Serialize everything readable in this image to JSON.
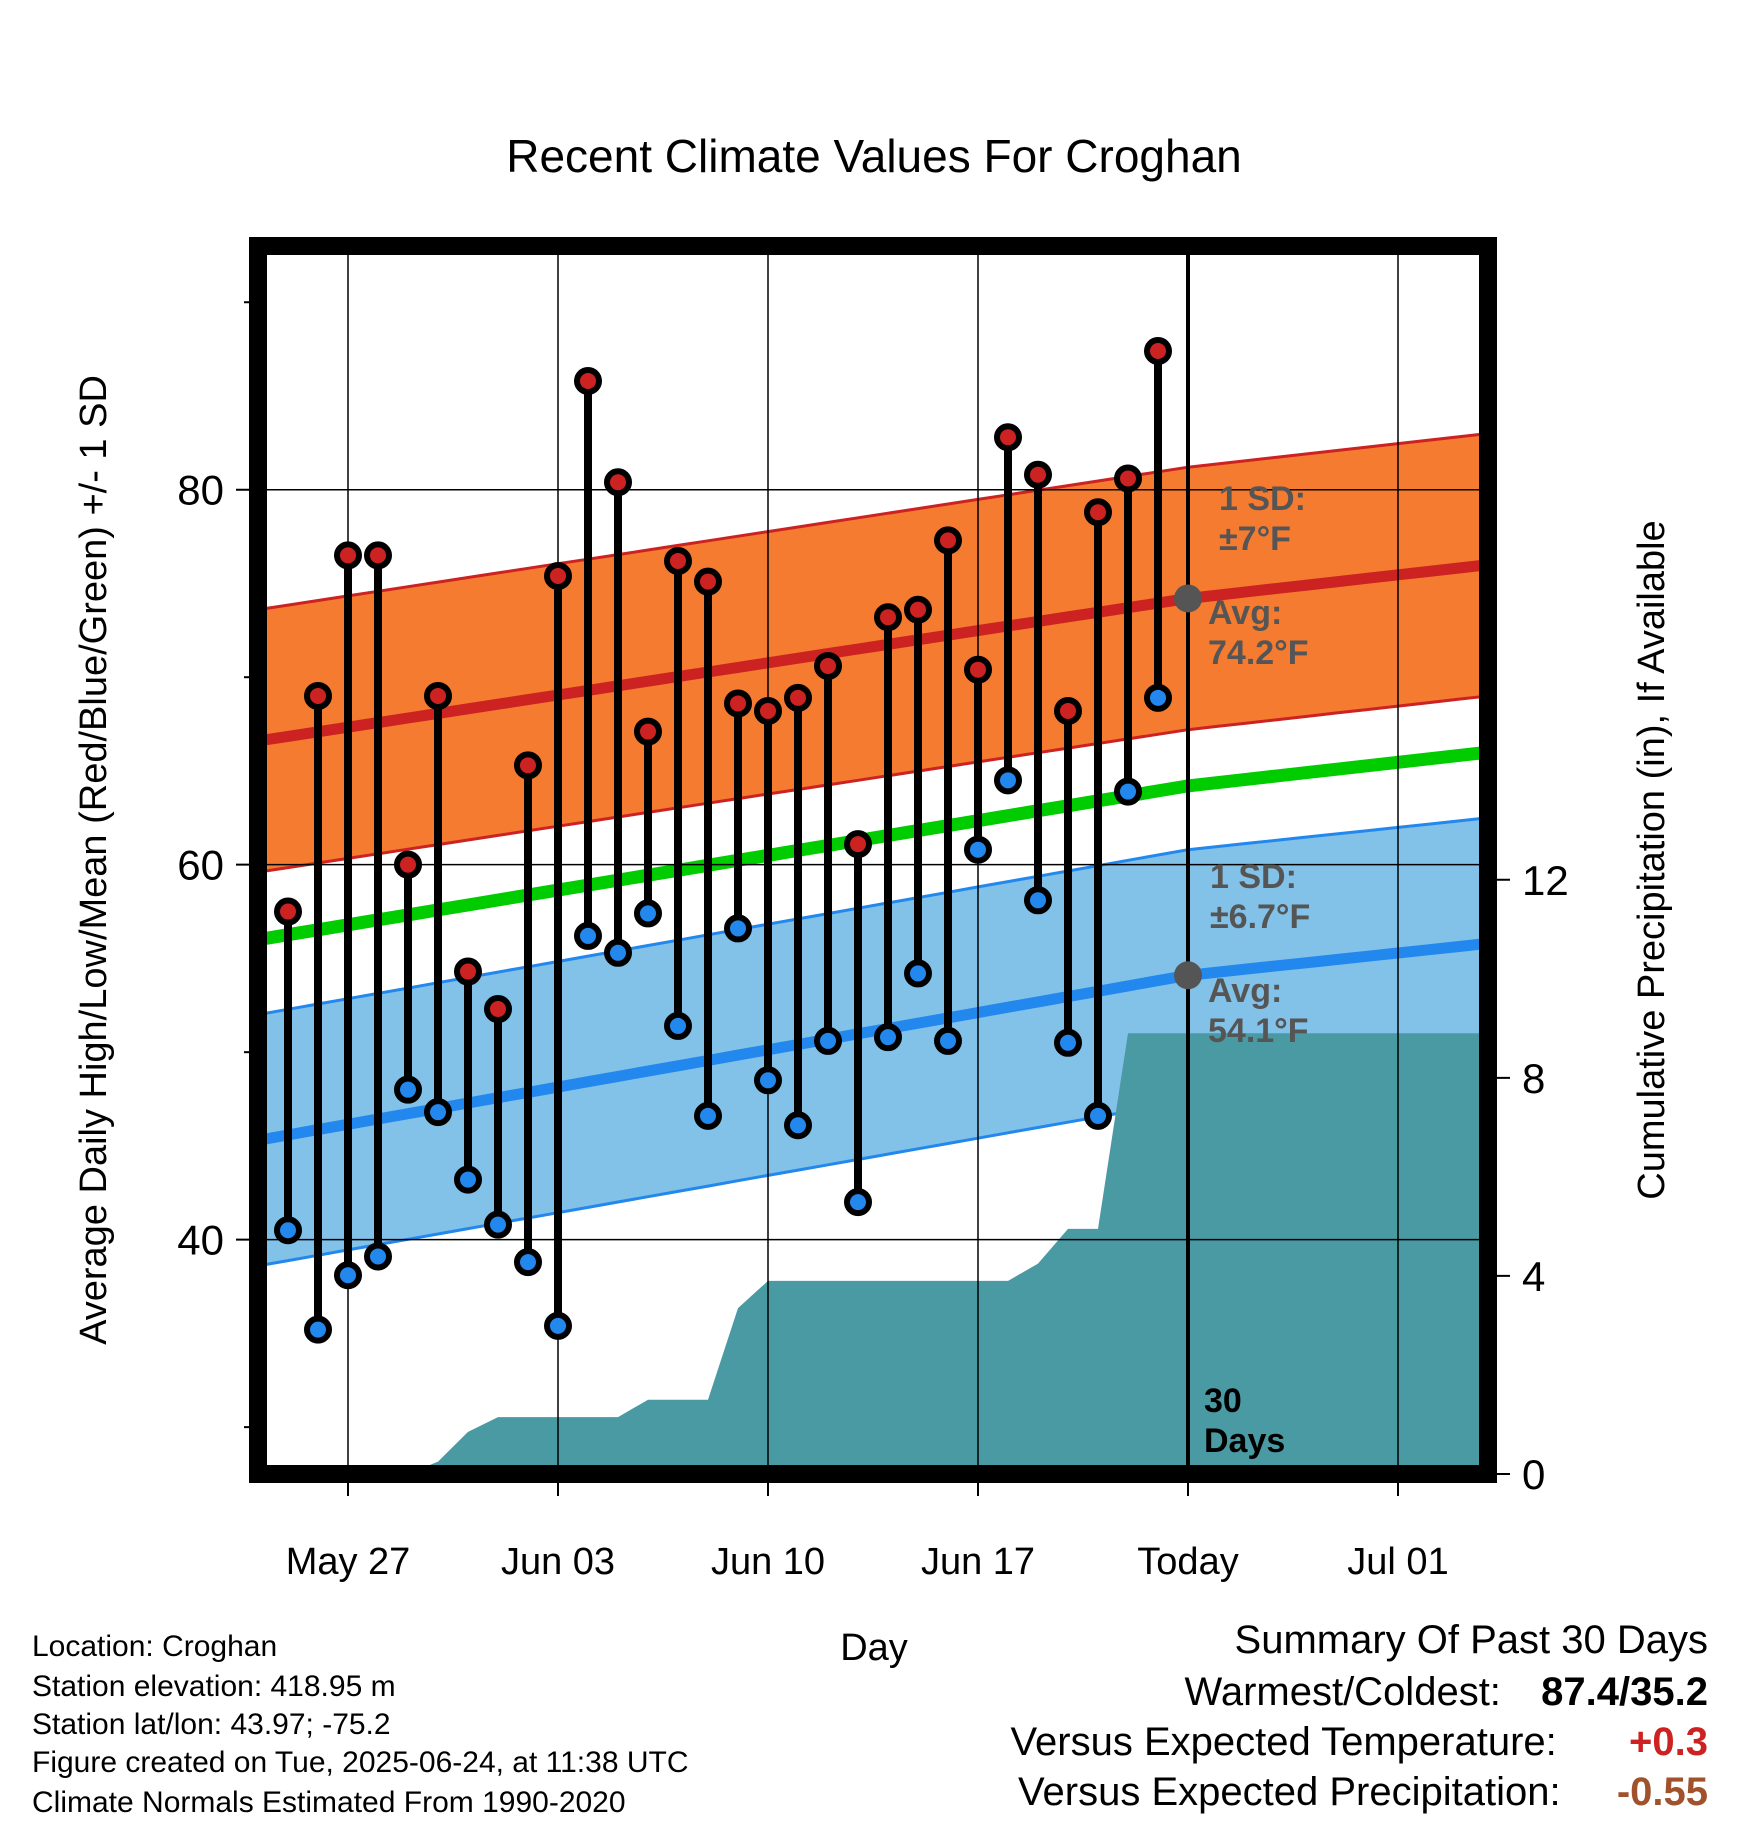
{
  "chart_data": {
    "type": "line",
    "title": "Recent Climate Values For Croghan",
    "xlabel": "Day",
    "ylabel": "Average Daily High/Low/Mean (Red/Blue/Green) +/- 1 SD",
    "y2label": "Cumulative Precipitation (in), If Available",
    "x_range": [
      "2025-05-24",
      "2025-07-04"
    ],
    "ylim": [
      27.5,
      93
    ],
    "y2lim": [
      0,
      24.8
    ],
    "yticks": [
      40,
      60,
      80
    ],
    "y2ticks": [
      0,
      4,
      8,
      12
    ],
    "xtick_labels": [
      {
        "date": "2025-05-27",
        "label": "May 27"
      },
      {
        "date": "2025-06-03",
        "label": "Jun 03"
      },
      {
        "date": "2025-06-10",
        "label": "Jun 10"
      },
      {
        "date": "2025-06-17",
        "label": "Jun 17"
      },
      {
        "date": "2025-06-24",
        "label": "Today"
      },
      {
        "date": "2025-07-01",
        "label": "Jul 01"
      }
    ],
    "today": "2025-06-24",
    "grid": true,
    "observed": {
      "dates": [
        "2025-05-25",
        "2025-05-26",
        "2025-05-27",
        "2025-05-28",
        "2025-05-29",
        "2025-05-30",
        "2025-05-31",
        "2025-06-01",
        "2025-06-02",
        "2025-06-03",
        "2025-06-04",
        "2025-06-05",
        "2025-06-06",
        "2025-06-07",
        "2025-06-08",
        "2025-06-09",
        "2025-06-10",
        "2025-06-11",
        "2025-06-12",
        "2025-06-13",
        "2025-06-14",
        "2025-06-15",
        "2025-06-16",
        "2025-06-17",
        "2025-06-18",
        "2025-06-19",
        "2025-06-20",
        "2025-06-21",
        "2025-06-22",
        "2025-06-23"
      ],
      "high": [
        57.5,
        69.0,
        76.5,
        76.5,
        60.0,
        69.0,
        54.3,
        52.3,
        65.3,
        75.4,
        85.8,
        80.4,
        67.1,
        76.2,
        75.1,
        68.6,
        68.2,
        68.9,
        70.6,
        61.1,
        73.2,
        73.6,
        77.3,
        70.4,
        82.8,
        80.8,
        68.2,
        78.8,
        80.6,
        87.4
      ],
      "low": [
        40.5,
        35.2,
        38.1,
        39.1,
        48.0,
        46.8,
        43.2,
        40.8,
        38.8,
        35.4,
        56.2,
        55.3,
        57.4,
        51.4,
        46.6,
        56.6,
        48.5,
        46.1,
        50.6,
        42.0,
        50.8,
        54.2,
        50.6,
        60.8,
        64.5,
        58.1,
        50.5,
        46.6,
        63.9,
        68.9
      ]
    },
    "normals": {
      "dates": [
        "2025-05-24",
        "2025-06-24",
        "2025-07-04"
      ],
      "high_avg": [
        66.6,
        74.2,
        76.0
      ],
      "high_sd": 7,
      "low_avg": [
        45.3,
        54.1,
        55.8
      ],
      "low_sd": 6.7,
      "mean_avg": [
        56.0,
        64.2,
        66.0
      ]
    },
    "precip": {
      "dates": [
        "2025-05-24",
        "2025-05-29",
        "2025-05-30",
        "2025-05-31",
        "2025-06-01",
        "2025-06-05",
        "2025-06-06",
        "2025-06-08",
        "2025-06-09",
        "2025-06-10",
        "2025-06-18",
        "2025-06-19",
        "2025-06-20",
        "2025-06-21",
        "2025-06-22",
        "2025-07-04"
      ],
      "values": [
        0,
        0,
        0.25,
        0.85,
        1.15,
        1.15,
        1.5,
        1.5,
        3.35,
        3.9,
        3.9,
        4.25,
        4.95,
        4.95,
        8.9,
        8.9
      ]
    },
    "annotations": {
      "high_sd": "1 SD:\n±7°F",
      "high_avg": "Avg:\n74.2°F",
      "low_sd": "1 SD:\n±6.7°F",
      "low_avg": "Avg:\n54.1°F",
      "window": "30\nDays"
    },
    "colors": {
      "high": "#cc2222",
      "high_band": "#f47b30",
      "low": "#2288ee",
      "low_band": "#82c1e8",
      "mean": "#00cc00",
      "precip": "#4a9aa3",
      "annotation": "#555555"
    }
  },
  "info": {
    "location": "Location: Croghan",
    "elevation": "Station elevation: 418.95 m",
    "latlon": "Station lat/lon: 43.97; -75.2",
    "created": "Figure created on Tue, 2025-06-24, at 11:38 UTC",
    "normals": "Climate Normals Estimated From 1990-2020"
  },
  "summary": {
    "title": "Summary Of Past 30 Days",
    "warmest_label": "Warmest/Coldest:",
    "warmest_value": "87.4/35.2",
    "temp_label": "Versus Expected Temperature:",
    "temp_value": "+0.3",
    "temp_color": "#cc2222",
    "precip_label": "Versus Expected Precipitation:",
    "precip_value": "-0.55",
    "precip_color": "#a0522d"
  }
}
